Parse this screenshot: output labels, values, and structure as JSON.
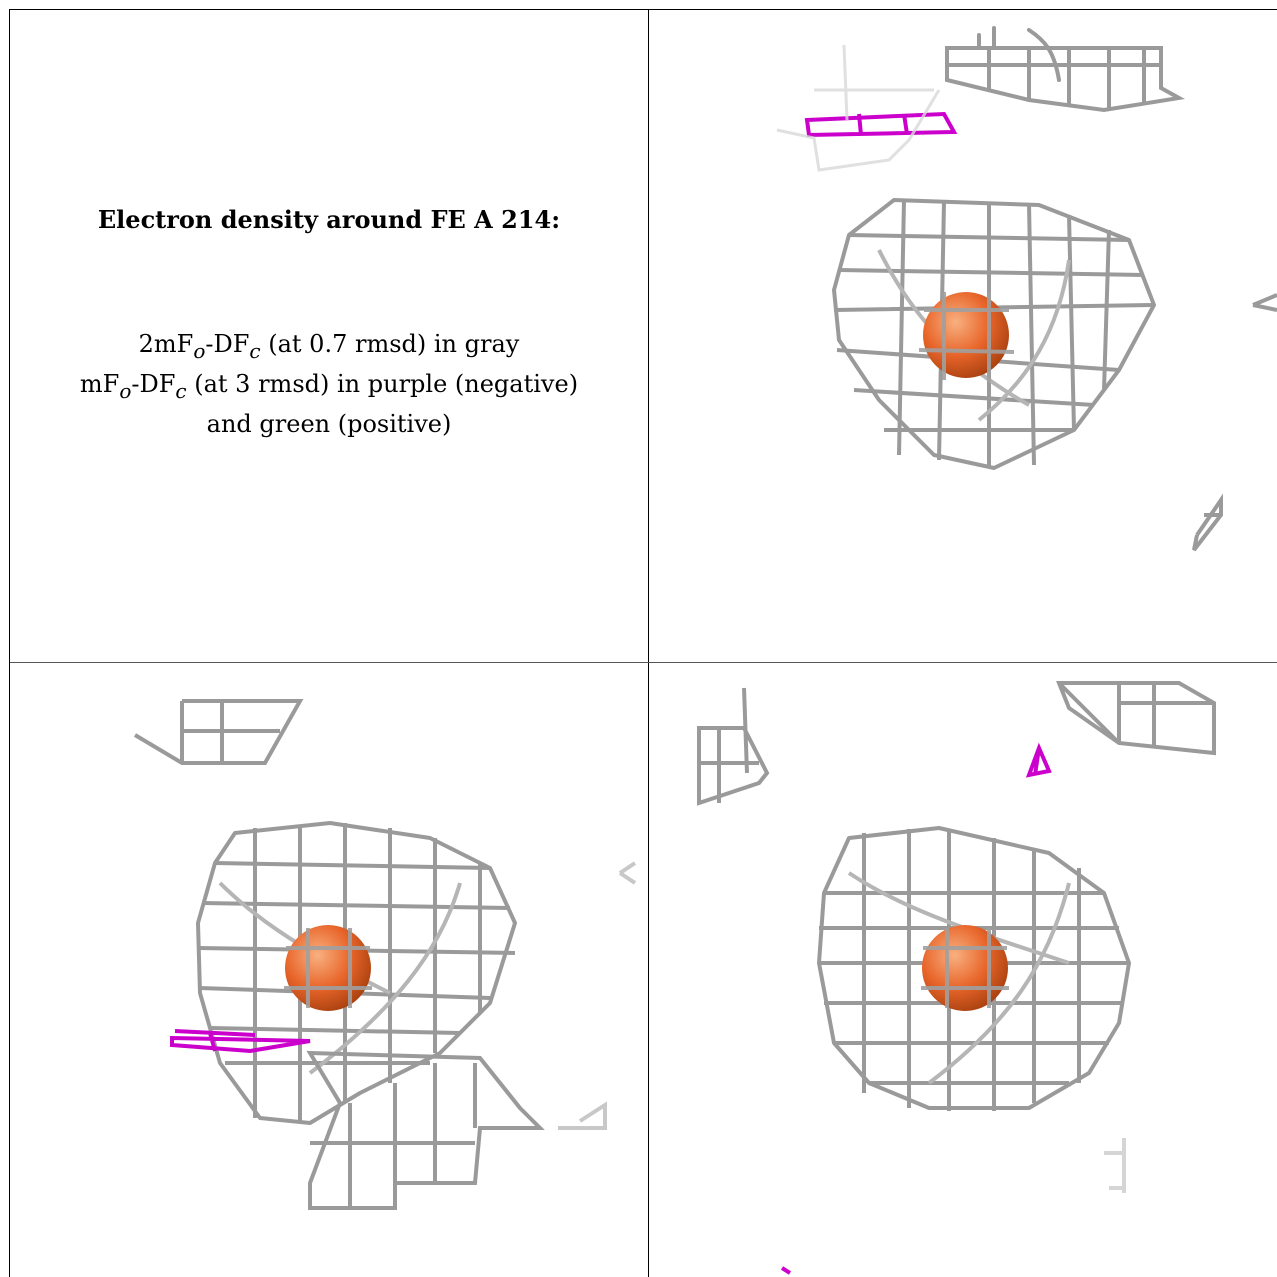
{
  "legend": {
    "title": "Electron density around FE A 214:",
    "line1": {
      "prefix": "2mF",
      "sub1": "o",
      "mid": "-DF",
      "sub2": "c",
      "suffix": " (at 0.7 rmsd) in gray"
    },
    "line2": {
      "prefix": "mF",
      "sub1": "o",
      "mid": "-DF",
      "sub2": "c",
      "suffix": " (at 3 rmsd) in purple (negative)"
    },
    "line3": "and green (positive)"
  },
  "colors": {
    "mesh_gray": "#9a9a9a",
    "mesh_negative": "#cc00cc",
    "atom": "#e8652a",
    "atom_highlight": "#f5a070"
  },
  "views": [
    "view-1",
    "view-2",
    "view-3"
  ]
}
